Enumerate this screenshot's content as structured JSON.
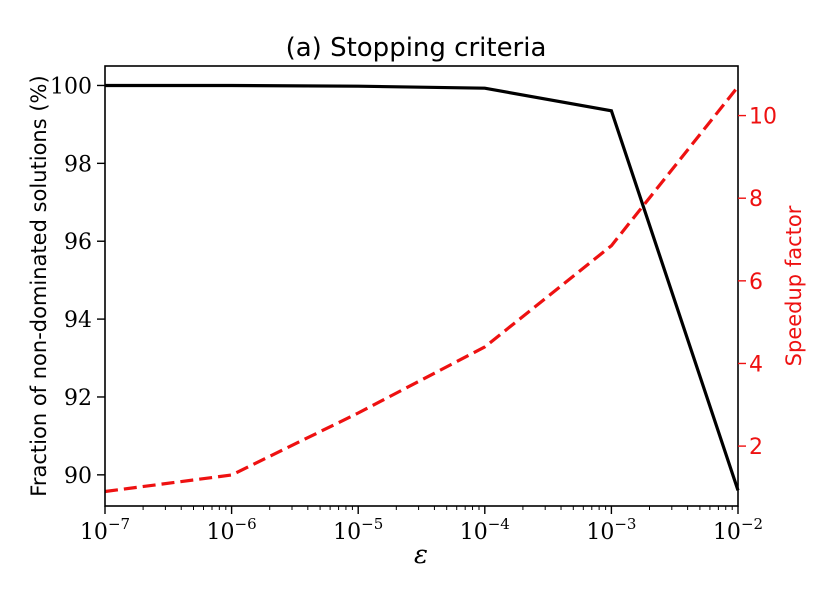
{
  "chart_data": {
    "type": "line",
    "title": "(a) Stopping criteria",
    "xlabel": "ε",
    "ylabel_left": "Fraction of non-dominated solutions (%)",
    "ylabel_right": "Speedup factor",
    "x_scale": "log",
    "xlim": [
      1e-07,
      0.01
    ],
    "ylim_left": [
      89.2,
      100.5
    ],
    "ylim_right": [
      0.55,
      11.2
    ],
    "x_ticks": [
      {
        "value": 1e-07,
        "base": "10",
        "exp": "−7"
      },
      {
        "value": 1e-06,
        "base": "10",
        "exp": "−6"
      },
      {
        "value": 1e-05,
        "base": "10",
        "exp": "−5"
      },
      {
        "value": 0.0001,
        "base": "10",
        "exp": "−4"
      },
      {
        "value": 0.001,
        "base": "10",
        "exp": "−3"
      },
      {
        "value": 0.01,
        "base": "10",
        "exp": "−2"
      }
    ],
    "y_ticks_left": [
      90,
      92,
      94,
      96,
      98,
      100
    ],
    "y_ticks_right": [
      2,
      4,
      6,
      8,
      10
    ],
    "grid": false,
    "colors": {
      "left_series": "#000000",
      "right_series": "#ee1111"
    },
    "series": [
      {
        "axis": "left",
        "style": "solid",
        "x": [
          1e-07,
          1e-06,
          1e-05,
          0.0001,
          0.001,
          0.01
        ],
        "values": [
          100.0,
          100.0,
          99.98,
          99.93,
          99.35,
          89.6
        ]
      },
      {
        "axis": "right",
        "style": "dashed",
        "x": [
          1e-07,
          1e-06,
          1e-05,
          0.0001,
          0.001,
          0.01
        ],
        "values": [
          0.9,
          1.3,
          2.8,
          4.4,
          6.85,
          10.7
        ]
      }
    ]
  }
}
